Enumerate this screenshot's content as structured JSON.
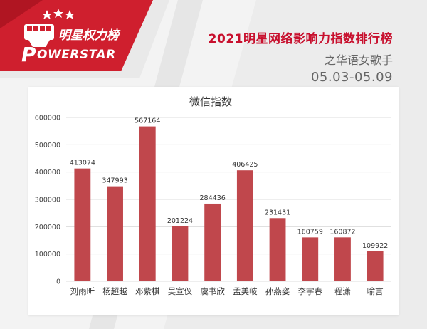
{
  "brand": {
    "name_cn": "明星权力榜",
    "name_en": "OWERSTAR",
    "name_en_initial": "P"
  },
  "header": {
    "title": "2021明星网络影响力指数排行榜",
    "subtitle": "之华语女歌手",
    "date_range": "05.03-05.09"
  },
  "colors": {
    "bar": "#c0474c",
    "brand_red": "#c8102e"
  },
  "chart_data": {
    "type": "bar",
    "title": "微信指数",
    "categories": [
      "刘雨昕",
      "杨超越",
      "邓紫棋",
      "吴宣仪",
      "虞书欣",
      "孟美岐",
      "孙燕姿",
      "李宇春",
      "程潇",
      "喻言"
    ],
    "values": [
      413074,
      347993,
      567164,
      201224,
      284436,
      406425,
      231431,
      160759,
      160872,
      109922
    ],
    "ylim": [
      0,
      600000
    ],
    "yticks": [
      0,
      100000,
      200000,
      300000,
      400000,
      500000,
      600000
    ],
    "grid": true,
    "data_labels": true
  }
}
